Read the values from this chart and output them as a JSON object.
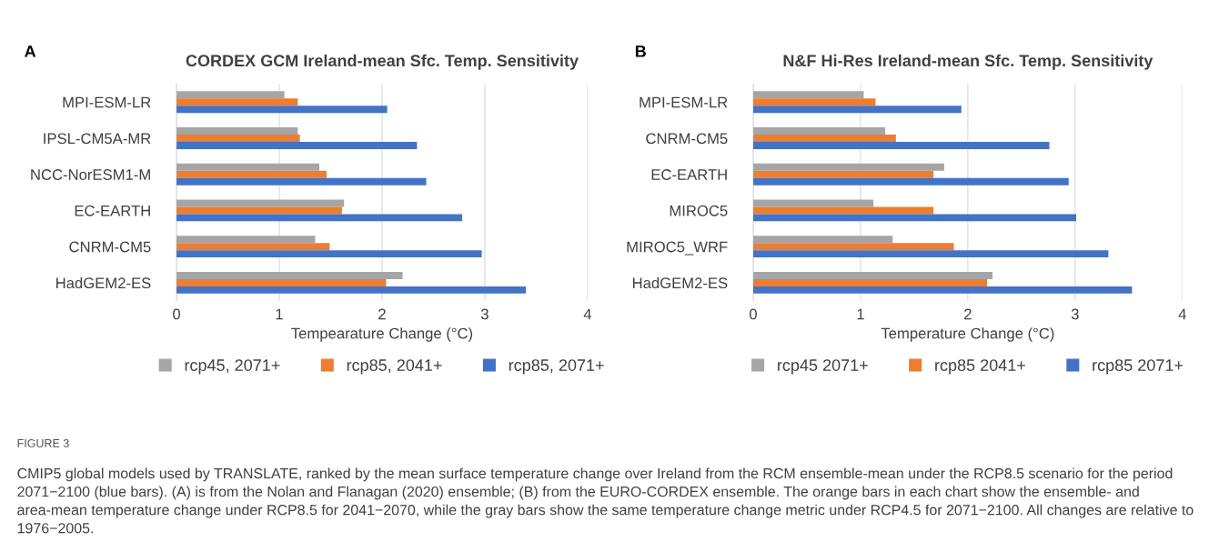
{
  "chart_data": [
    {
      "type": "bar",
      "orientation": "horizontal",
      "title": "CORDEX GCM Ireland-mean Sfc. Temp. Sensitivity",
      "xlabel": "Tempearature Change (°C)",
      "categories": [
        "MPI-ESM-LR",
        "IPSL-CM5A-MR",
        "NCC-NorESM1-M",
        "EC-EARTH",
        "CNRM-CM5",
        "HadGEM2-ES"
      ],
      "series": [
        {
          "name": "rcp45, 2071+",
          "color": "#a5a5a5",
          "values": [
            1.05,
            1.18,
            1.39,
            1.63,
            1.35,
            2.2
          ]
        },
        {
          "name": "rcp85, 2041+",
          "color": "#ed7d31",
          "values": [
            1.18,
            1.2,
            1.46,
            1.61,
            1.49,
            2.04
          ]
        },
        {
          "name": "rcp85, 2071+",
          "color": "#4472c4",
          "values": [
            2.05,
            2.34,
            2.43,
            2.78,
            2.97,
            3.4
          ]
        }
      ],
      "xlim": [
        0,
        4
      ],
      "xticks": [
        0,
        1,
        2,
        3,
        4
      ],
      "grid": "x",
      "legend": "bottom",
      "annotations": [
        "A",
        "FIGURE 3",
        "CMIP5 global models used by TRANSLATE, ranked by the mean surface temperature change over Ireland from the RCM ensemble-mean under the RCP8.5 scenario for the period 2071−2100 (blue bars). (A) is from the Nolan and Flanagan (2020) ensemble; (B) from the EURO-CORDEX ensemble. The orange bars in each chart show the ensemble- and area-mean temperature change under RCP8.5 for 2041−2070, while the gray bars show the same temperature change metric under RCP4.5 for 2071−2100. All changes are relative to 1976−2005."
      ]
    },
    {
      "type": "bar",
      "orientation": "horizontal",
      "title": "N&F Hi-Res Ireland-mean Sfc. Temp. Sensitivity",
      "xlabel": "Temperature Change (°C)",
      "categories": [
        "MPI-ESM-LR",
        "CNRM-CM5",
        "EC-EARTH",
        "MIROC5",
        "MIROC5_WRF",
        "HadGEM2-ES"
      ],
      "series": [
        {
          "name": "rcp45 2071+",
          "color": "#a5a5a5",
          "values": [
            1.03,
            1.23,
            1.78,
            1.12,
            1.3,
            2.23
          ]
        },
        {
          "name": "rcp85 2041+",
          "color": "#ed7d31",
          "values": [
            1.14,
            1.33,
            1.68,
            1.68,
            1.87,
            2.18
          ]
        },
        {
          "name": "rcp85 2071+",
          "color": "#4472c4",
          "values": [
            1.94,
            2.76,
            2.94,
            3.01,
            3.31,
            3.53
          ]
        }
      ],
      "xlim": [
        0,
        4
      ],
      "xticks": [
        0,
        1,
        2,
        3,
        4
      ],
      "grid": "x",
      "legend": "bottom",
      "annotations": [
        "B"
      ]
    }
  ]
}
